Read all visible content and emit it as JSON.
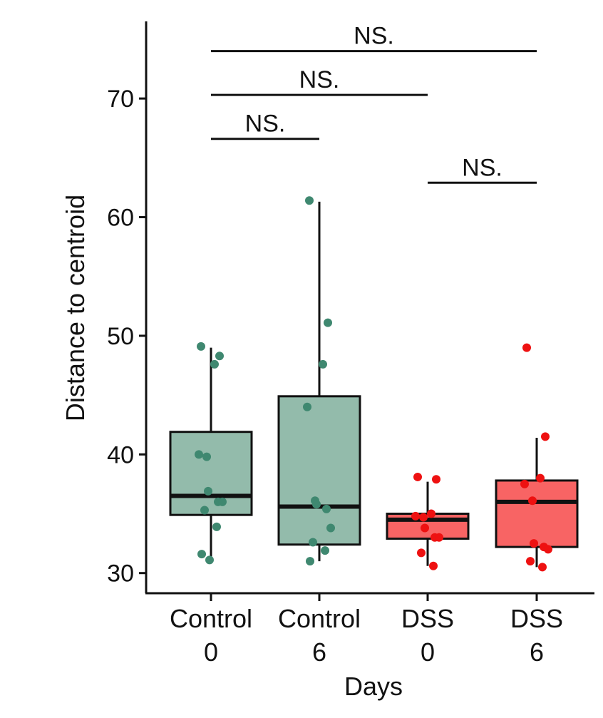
{
  "chart_data": {
    "type": "box",
    "title": "",
    "xlabel": "Days",
    "ylabel": "Distance to centroid",
    "ylim": [
      28.3,
      76.5
    ],
    "yticks": [
      30,
      40,
      50,
      60,
      70
    ],
    "categories": [
      {
        "line1": "Control",
        "line2": "0"
      },
      {
        "line1": "Control",
        "line2": "6"
      },
      {
        "line1": "DSS",
        "line2": "0"
      },
      {
        "line1": "DSS",
        "line2": "6"
      }
    ],
    "boxes": [
      {
        "group": "Control",
        "q1": 34.9,
        "median": 36.5,
        "q3": 41.9,
        "whisker_low": 31.0,
        "whisker_high": 49.0,
        "fill": "#93bbab",
        "points": [
          49.1,
          48.3,
          47.6,
          40.0,
          39.8,
          36.9,
          36.0,
          36.0,
          35.3,
          33.9,
          31.6,
          31.1
        ]
      },
      {
        "group": "Control",
        "q1": 32.4,
        "median": 35.6,
        "q3": 44.9,
        "whisker_low": 31.0,
        "whisker_high": 61.3,
        "fill": "#93bbab",
        "points": [
          61.4,
          51.1,
          47.6,
          44.0,
          36.1,
          35.8,
          35.4,
          33.8,
          32.6,
          31.9,
          31.0
        ]
      },
      {
        "group": "DSS",
        "q1": 32.9,
        "median": 34.5,
        "q3": 35.0,
        "whisker_low": 30.6,
        "whisker_high": 37.7,
        "fill": "#f86464",
        "points": [
          38.1,
          37.9,
          35.0,
          34.8,
          34.7,
          33.8,
          33.0,
          33.0,
          31.7,
          30.6
        ]
      },
      {
        "group": "DSS",
        "q1": 32.2,
        "median": 36.0,
        "q3": 37.8,
        "whisker_low": 30.5,
        "whisker_high": 41.4,
        "fill": "#f86464",
        "points": [
          49.0,
          41.5,
          38.0,
          37.5,
          36.1,
          32.5,
          32.2,
          32.0,
          31.0,
          30.5
        ]
      }
    ],
    "point_colors": {
      "Control": "#3f8870",
      "DSS": "#ee1111"
    },
    "significance": [
      {
        "from": 0,
        "to": 3,
        "y": 74.0,
        "label": "NS."
      },
      {
        "from": 0,
        "to": 2,
        "y": 70.3,
        "label": "NS."
      },
      {
        "from": 0,
        "to": 1,
        "y": 66.6,
        "label": "NS."
      },
      {
        "from": 2,
        "to": 3,
        "y": 62.9,
        "label": "NS."
      }
    ]
  }
}
